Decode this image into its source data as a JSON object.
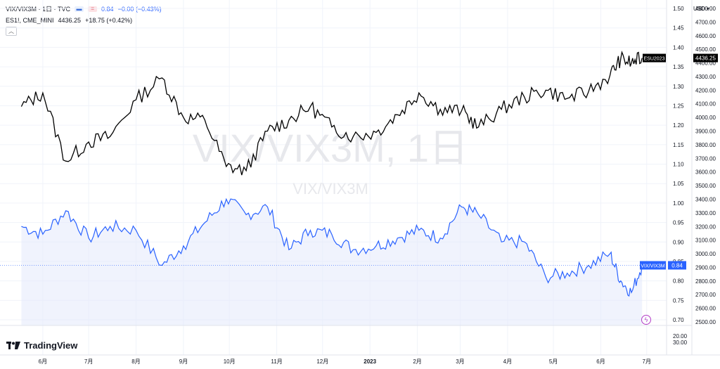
{
  "legend": {
    "main_symbol": "VIX/VIX3M · 1日 · TVC",
    "main_value": "0.84",
    "main_change": "−0.00 (−0.43%)",
    "compare_symbol": "ES1!, CME_MINI",
    "compare_value": "4436.25",
    "compare_change": "+18.75 (+0.42%)"
  },
  "watermark": {
    "big": "VIX/VIX3M, 1日",
    "small": "VIX/VIX3M"
  },
  "currency": "USD",
  "brand": "TradingView",
  "colors": {
    "main_line": "#2962ff",
    "compare_line": "#000000",
    "area_fill": "#e3eafc"
  },
  "labels": {
    "es_tag": "ESU2023",
    "es_price": "4436.25",
    "vix_tag": "VIX/VIX3M",
    "vix_price": "0.84"
  },
  "left_axis": {
    "ticks": [
      "1.50",
      "1.45",
      "1.40",
      "1.35",
      "1.30",
      "1.25",
      "1.20",
      "1.15",
      "1.10",
      "1.05",
      "1.00",
      "0.95",
      "0.90",
      "0.85",
      "0.80",
      "0.75",
      "0.70"
    ]
  },
  "right_axis": {
    "ticks": [
      "4800.00",
      "4700.00",
      "4600.00",
      "4500.00",
      "4400.00",
      "4300.00",
      "4200.00",
      "4100.00",
      "4000.00",
      "3900.00",
      "3800.00",
      "3700.00",
      "3600.00",
      "3500.00",
      "3400.00",
      "3300.00",
      "3200.00",
      "3100.00",
      "3000.00",
      "2900.00",
      "2800.00",
      "2700.00",
      "2600.00",
      "2500.00"
    ],
    "volume_ticks": [
      "20.00",
      "30.00"
    ]
  },
  "time_axis": [
    "6月",
    "7月",
    "8月",
    "9月",
    "10月",
    "11月",
    "12月",
    "2023",
    "2月",
    "3月",
    "4月",
    "5月",
    "6月",
    "7月"
  ],
  "chart_data": {
    "type": "line",
    "series": [
      {
        "name": "VIX/VIX3M",
        "axis": "left",
        "x": [
          "2022-05-18",
          "2022-06-01",
          "2022-06-16",
          "2022-07-01",
          "2022-07-15",
          "2022-08-01",
          "2022-08-18",
          "2022-09-01",
          "2022-09-15",
          "2022-09-29",
          "2022-10-12",
          "2022-10-26",
          "2022-11-09",
          "2022-11-23",
          "2022-12-07",
          "2022-12-21",
          "2023-01-05",
          "2023-01-19",
          "2023-02-02",
          "2023-02-16",
          "2023-03-02",
          "2023-03-13",
          "2023-03-28",
          "2023-04-12",
          "2023-04-26",
          "2023-05-10",
          "2023-05-24",
          "2023-06-07",
          "2023-06-14",
          "2023-06-21",
          "2023-06-28"
        ],
        "y": [
          0.94,
          0.92,
          0.98,
          0.91,
          0.94,
          0.93,
          0.84,
          0.89,
          0.95,
          1.01,
          0.97,
          0.99,
          0.88,
          0.93,
          0.92,
          0.88,
          0.89,
          0.91,
          0.93,
          0.91,
          0.99,
          0.97,
          0.9,
          0.9,
          0.81,
          0.82,
          0.84,
          0.87,
          0.8,
          0.77,
          0.84
        ]
      },
      {
        "name": "ESU2023",
        "axis": "right",
        "x": [
          "2022-05-18",
          "2022-06-01",
          "2022-06-16",
          "2022-07-01",
          "2022-07-15",
          "2022-08-01",
          "2022-08-18",
          "2022-09-01",
          "2022-09-15",
          "2022-09-29",
          "2022-10-12",
          "2022-10-26",
          "2022-11-09",
          "2022-11-23",
          "2022-12-07",
          "2022-12-21",
          "2023-01-05",
          "2023-01-19",
          "2023-02-02",
          "2023-02-16",
          "2023-03-02",
          "2023-03-13",
          "2023-03-28",
          "2023-04-12",
          "2023-04-26",
          "2023-05-10",
          "2023-05-24",
          "2023-06-07",
          "2023-06-14",
          "2023-06-21",
          "2023-06-28"
        ],
        "y": [
          4080,
          4180,
          3680,
          3820,
          3860,
          4130,
          4290,
          4000,
          3980,
          3640,
          3610,
          3900,
          3980,
          4080,
          3930,
          3860,
          3890,
          4020,
          4180,
          4060,
          4050,
          3930,
          4060,
          4150,
          4200,
          4140,
          4190,
          4310,
          4430,
          4400,
          4436.25
        ]
      }
    ],
    "left_ylim": [
      0.7,
      1.5
    ],
    "right_ylim": [
      2500,
      4800
    ],
    "grid": true
  }
}
